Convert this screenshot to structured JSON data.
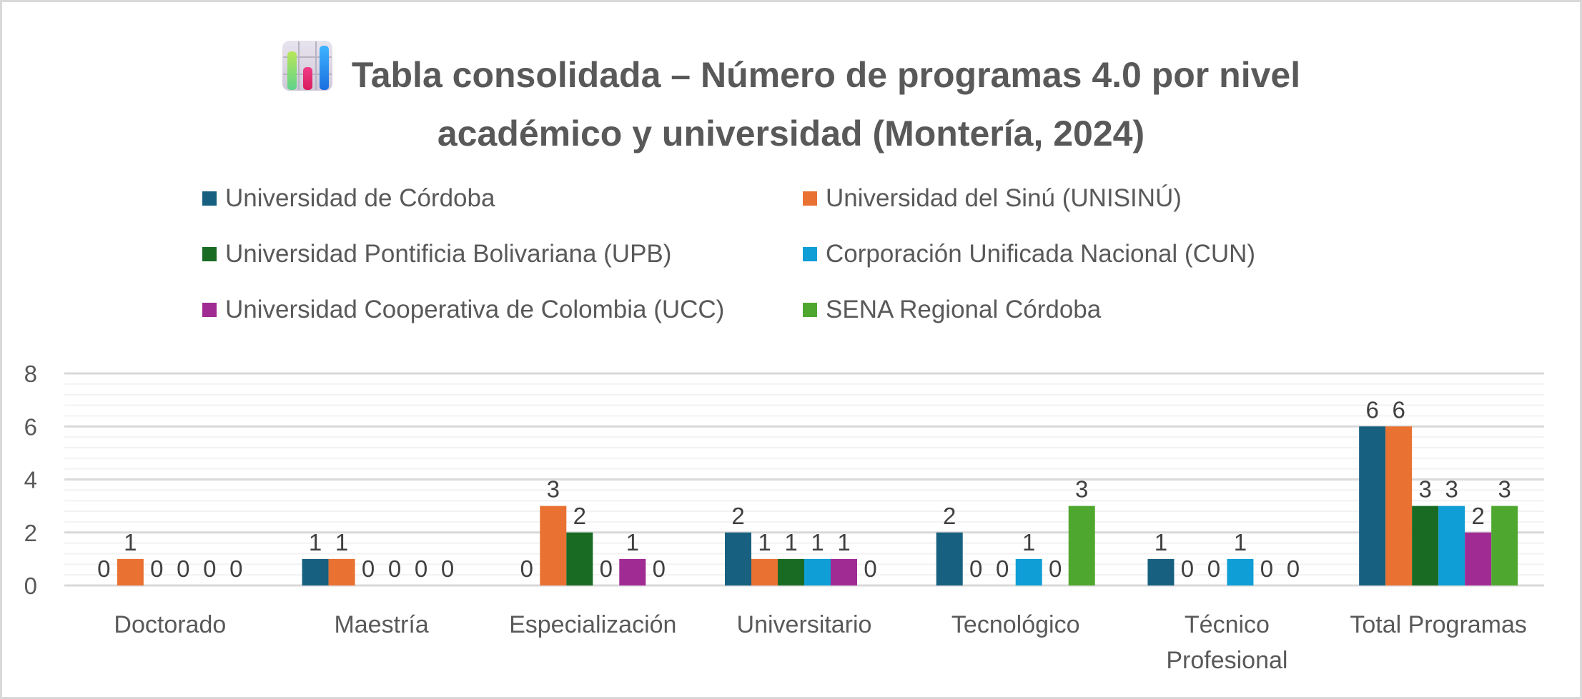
{
  "title": {
    "icon": "bar-chart-icon",
    "line1": "Tabla consolidada – Número de programas 4.0 por nivel",
    "line2": "académico y universidad (Montería, 2024)"
  },
  "chart_data": {
    "type": "bar",
    "title": "Tabla consolidada – Número de programas 4.0 por nivel académico y universidad (Montería, 2024)",
    "xlabel": "",
    "ylabel": "",
    "ylim": [
      0,
      8
    ],
    "yticks": [
      "0",
      "2",
      "4",
      "6",
      "8"
    ],
    "major_step": 2,
    "minor_step": 0.4,
    "grid": true,
    "legend_position": "top",
    "data_labels": true,
    "categories": [
      [
        "Doctorado"
      ],
      [
        "Maestría"
      ],
      [
        "Especialización"
      ],
      [
        "Universitario"
      ],
      [
        "Tecnológico"
      ],
      [
        "Técnico",
        "Profesional"
      ],
      [
        "Total Programas"
      ]
    ],
    "series": [
      {
        "name": "Universidad de Córdoba",
        "color": "#17607f",
        "values": [
          0,
          1,
          0,
          2,
          2,
          1,
          6
        ]
      },
      {
        "name": "Universidad del Sinú (UNISINÚ)",
        "color": "#e97132",
        "values": [
          1,
          1,
          3,
          1,
          0,
          0,
          6
        ]
      },
      {
        "name": "Universidad Pontificia Bolivariana (UPB)",
        "color": "#196b24",
        "values": [
          0,
          0,
          2,
          1,
          0,
          0,
          3
        ]
      },
      {
        "name": "Corporación Unificada Nacional (CUN)",
        "color": "#0f9ed5",
        "values": [
          0,
          0,
          0,
          1,
          1,
          1,
          3
        ]
      },
      {
        "name": "Universidad Cooperativa de Colombia (UCC)",
        "color": "#a02b93",
        "values": [
          0,
          0,
          1,
          1,
          0,
          0,
          2
        ]
      },
      {
        "name": "SENA Regional Córdoba",
        "color": "#4ea72e",
        "values": [
          0,
          0,
          0,
          0,
          3,
          0,
          3
        ]
      }
    ]
  },
  "colors": {
    "text": "#595959",
    "data_label": "#404040",
    "major_grid": "#d9d9d9",
    "minor_grid": "#f2f2f2",
    "border": "#d9d9d9"
  }
}
